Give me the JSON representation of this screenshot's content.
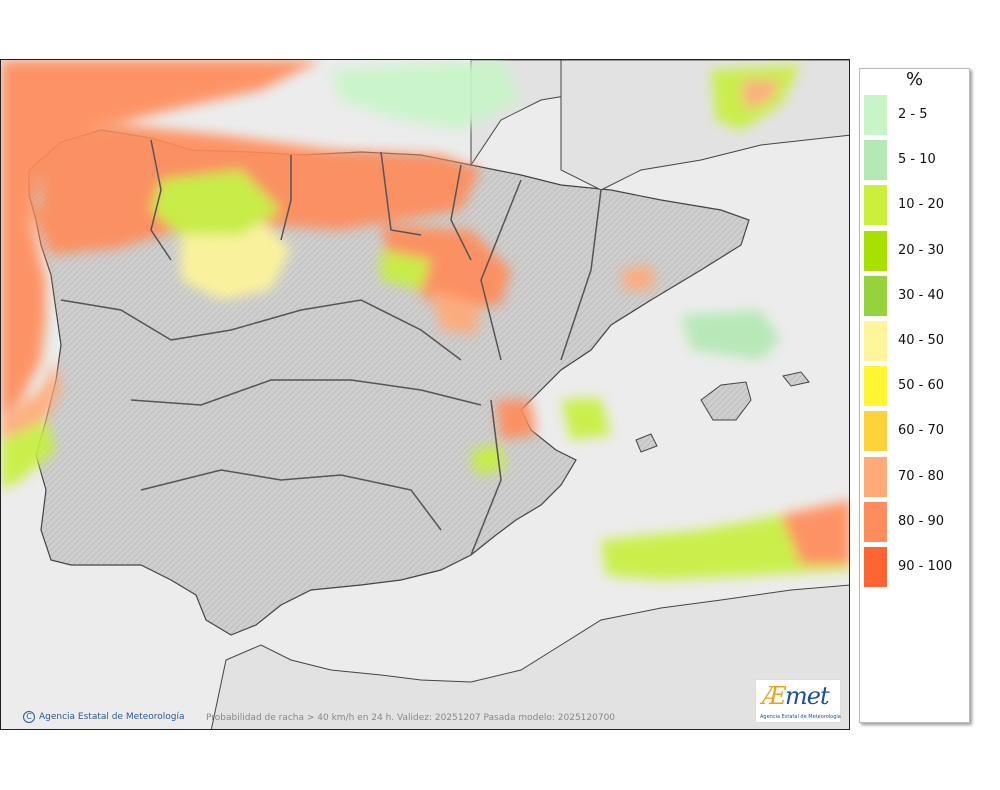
{
  "map": {
    "credit": "Agencia Estatal de Meteorología",
    "caption": "Probabilidad de racha > 40 km/h en 24 h. Validez: 20251207 Pasada modelo: 2025120700",
    "logo": {
      "word_ae": "Æ",
      "word_rest": "met",
      "subtitle": "Agencia Estatal de Meteorología"
    }
  },
  "legend": {
    "unit": "%",
    "items": [
      {
        "label": "2 - 5",
        "color": "#c8f5c8"
      },
      {
        "label": "5 - 10",
        "color": "#b4e8b4"
      },
      {
        "label": "10 - 20",
        "color": "#c8f03c"
      },
      {
        "label": "20 - 30",
        "color": "#a8e000"
      },
      {
        "label": "30 - 40",
        "color": "#96d23c"
      },
      {
        "label": "40 - 50",
        "color": "#fff59a"
      },
      {
        "label": "50 - 60",
        "color": "#fff532"
      },
      {
        "label": "60 - 70",
        "color": "#ffd23c"
      },
      {
        "label": "70 - 80",
        "color": "#ffaa78"
      },
      {
        "label": "80 - 90",
        "color": "#ff8c5a"
      },
      {
        "label": "90 - 100",
        "color": "#ff6432"
      }
    ]
  }
}
